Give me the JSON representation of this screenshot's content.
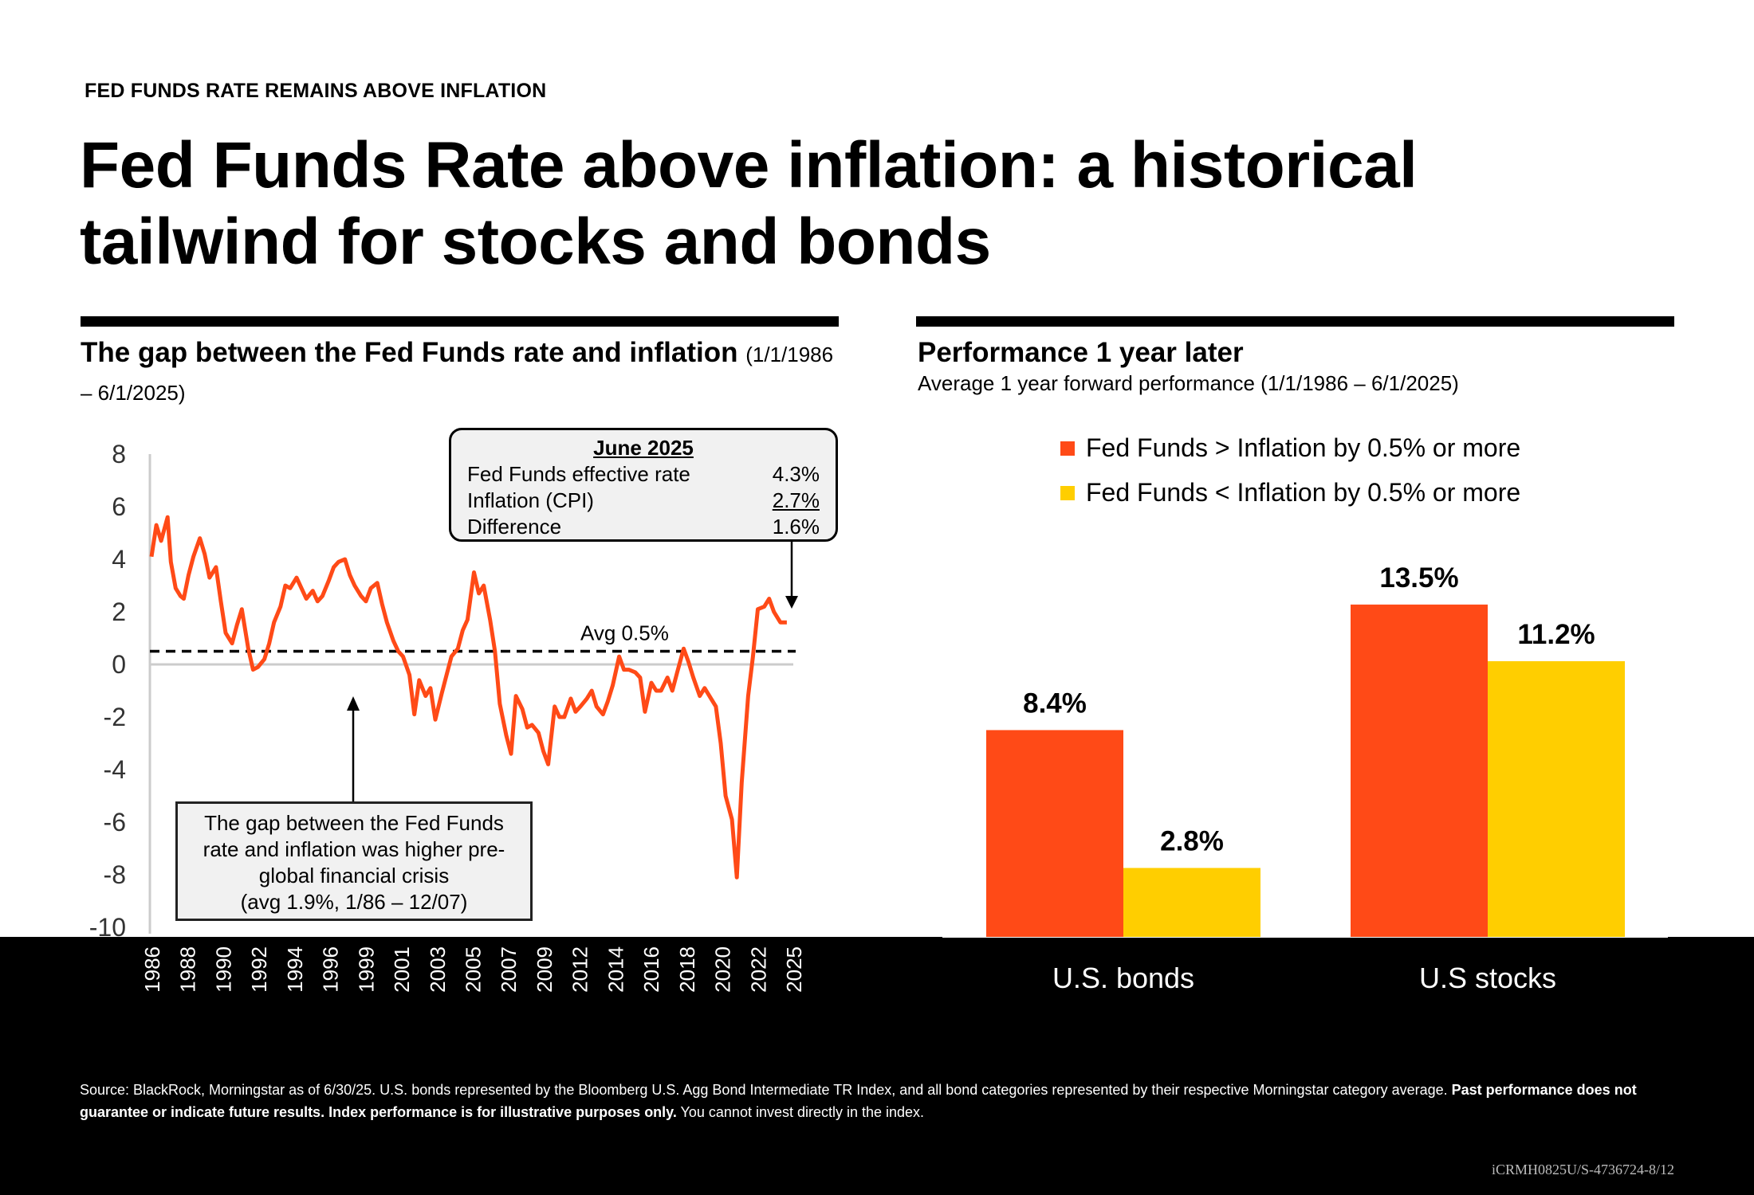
{
  "page": {
    "eyebrow": "FED FUNDS RATE REMAINS ABOVE INFLATION",
    "headline": "Fed Funds Rate above inflation: a historical tailwind for stocks and bonds",
    "footnote_plain": "Source: BlackRock, Morningstar as of 6/30/25. U.S. bonds represented by the Bloomberg U.S. Agg Bond Intermediate TR Index, and all bond categories represented by their respective Morningstar category average.  ",
    "footnote_bold": "Past performance does not guarantee or indicate future results. Index performance is for illustrative purposes only.",
    "footnote_tail": " You cannot invest directly in the index.",
    "code": "iCRMH0825U/S-4736724-8/12",
    "colors": {
      "orange": "#FF4A17",
      "yellow": "#FFCE00",
      "band": "#000000"
    }
  },
  "chart_data": [
    {
      "type": "line",
      "title": "The gap between the Fed Funds rate and inflation",
      "subtitle": "(1/1/1986 – 6/1/2025)",
      "ylim": [
        -10,
        8
      ],
      "yticks": [
        8,
        6,
        4,
        2,
        0,
        -2,
        -4,
        -6,
        -8,
        -10
      ],
      "xlim": [
        1986,
        2025.8
      ],
      "xtick_labels": [
        "1986",
        "1988",
        "1990",
        "1992",
        "1994",
        "1996",
        "1999",
        "2001",
        "2003",
        "2005",
        "2007",
        "2009",
        "2012",
        "2014",
        "2016",
        "2018",
        "2020",
        "2022",
        "2025"
      ],
      "avg_label": "Avg 0.5%",
      "avg_value": 0.5,
      "series": [
        {
          "color": "#FF4A17",
          "x": [
            1986.0,
            1986.3,
            1986.6,
            1987.0,
            1987.2,
            1987.5,
            1987.8,
            1988.0,
            1988.3,
            1988.6,
            1989.0,
            1989.3,
            1989.6,
            1990.0,
            1990.3,
            1990.6,
            1991.0,
            1991.3,
            1991.6,
            1992.0,
            1992.3,
            1992.6,
            1993.0,
            1993.3,
            1993.6,
            1994.0,
            1994.3,
            1994.6,
            1995.0,
            1995.3,
            1995.6,
            1996.0,
            1996.3,
            1996.6,
            1997.0,
            1997.3,
            1997.6,
            1998.0,
            1998.3,
            1998.6,
            1999.0,
            1999.3,
            1999.6,
            2000.0,
            2000.3,
            2000.6,
            2001.0,
            2001.3,
            2001.6,
            2002.0,
            2002.3,
            2002.6,
            2003.0,
            2003.3,
            2003.6,
            2004.0,
            2004.3,
            2004.6,
            2005.0,
            2005.3,
            2005.6,
            2006.0,
            2006.3,
            2006.6,
            2007.0,
            2007.3,
            2007.6,
            2008.0,
            2008.3,
            2008.6,
            2009.0,
            2009.3,
            2009.6,
            2010.0,
            2010.3,
            2010.6,
            2011.0,
            2011.3,
            2011.6,
            2012.0,
            2012.3,
            2012.6,
            2013.0,
            2013.3,
            2013.6,
            2014.0,
            2014.3,
            2014.6,
            2015.0,
            2015.3,
            2015.6,
            2016.0,
            2016.3,
            2016.6,
            2017.0,
            2017.3,
            2017.6,
            2018.0,
            2018.3,
            2018.6,
            2019.0,
            2019.3,
            2019.6,
            2020.0,
            2020.3,
            2020.6,
            2021.0,
            2021.3,
            2021.6,
            2022.0,
            2022.3,
            2022.6,
            2023.0,
            2023.3,
            2023.6,
            2024.0,
            2024.3,
            2024.6,
            2025.0,
            2025.4
          ],
          "y": [
            4.1,
            5.3,
            4.7,
            5.6,
            3.9,
            2.9,
            2.6,
            2.5,
            3.4,
            4.1,
            4.8,
            4.2,
            3.3,
            3.7,
            2.4,
            1.2,
            0.8,
            1.5,
            2.1,
            0.6,
            -0.2,
            -0.1,
            0.2,
            0.8,
            1.6,
            2.2,
            3.0,
            2.9,
            3.3,
            2.9,
            2.5,
            2.8,
            2.4,
            2.6,
            3.2,
            3.7,
            3.9,
            4.0,
            3.4,
            3.0,
            2.6,
            2.4,
            2.9,
            3.1,
            2.3,
            1.6,
            0.9,
            0.5,
            0.3,
            -0.4,
            -1.9,
            -0.6,
            -1.2,
            -0.9,
            -2.1,
            -1.1,
            -0.4,
            0.3,
            0.6,
            1.3,
            1.7,
            3.5,
            2.7,
            3.0,
            1.7,
            0.5,
            -1.5,
            -2.7,
            -3.4,
            -1.2,
            -1.7,
            -2.4,
            -2.3,
            -2.6,
            -3.3,
            -3.8,
            -1.6,
            -2.0,
            -2.0,
            -1.3,
            -1.8,
            -1.6,
            -1.3,
            -1.0,
            -1.6,
            -1.9,
            -1.4,
            -0.8,
            0.3,
            -0.2,
            -0.2,
            -0.3,
            -0.5,
            -1.8,
            -0.7,
            -1.0,
            -1.0,
            -0.5,
            -1.0,
            -0.3,
            0.6,
            0.1,
            -0.5,
            -1.2,
            -0.9,
            -1.2,
            -1.6,
            -3.0,
            -5.0,
            -5.9,
            -8.1,
            -4.5,
            -1.2,
            0.3,
            2.1,
            2.2,
            2.5,
            2.0,
            1.6,
            1.6
          ]
        }
      ],
      "callout_june": {
        "title": "June 2025",
        "rows": [
          {
            "label": "Fed Funds effective rate",
            "value": "4.3%"
          },
          {
            "label": "Inflation (CPI)",
            "value": "2.7%"
          },
          {
            "label": "Difference",
            "value": "1.6%"
          }
        ]
      },
      "callout_gap": {
        "lines": [
          "The gap between the Fed Funds",
          "rate and inflation was higher pre-",
          "global financial crisis",
          "(avg 1.9%, 1/86 – 12/07)"
        ]
      }
    },
    {
      "type": "bar",
      "title": "Performance 1 year later",
      "subtitle": "Average 1 year forward performance  (1/1/1986 – 6/1/2025)",
      "categories": [
        "U.S. bonds",
        "U.S stocks"
      ],
      "series": [
        {
          "name": "Fed Funds > Inflation by 0.5% or more",
          "color": "#FF4A17",
          "values": [
            8.4,
            13.5
          ],
          "labels": [
            "8.4%",
            "13.5%"
          ]
        },
        {
          "name": "Fed Funds < Inflation by 0.5% or more",
          "color": "#FFCE00",
          "values": [
            2.8,
            11.2
          ],
          "labels": [
            "2.8%",
            "11.2%"
          ]
        }
      ]
    }
  ]
}
